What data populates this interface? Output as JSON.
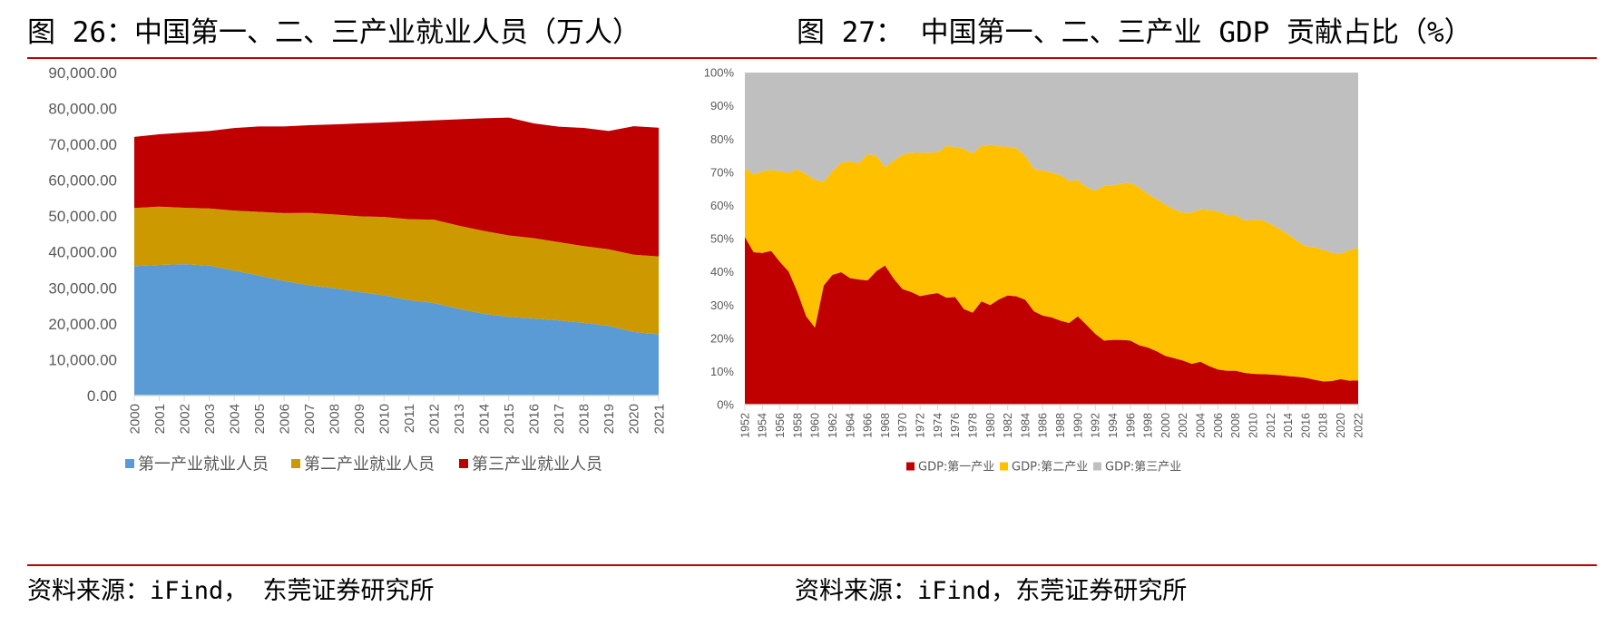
{
  "figures": {
    "left_title": "图 26：中国第一、二、三产业就业人员（万人）",
    "right_title": "图 27： 中国第一、二、三产业 GDP 贡献占比（%）",
    "left_source": "资料来源：iFind， 东莞证券研究所",
    "right_source": "资料来源：iFind，东莞证券研究所"
  },
  "chart_data": [
    {
      "type": "area",
      "stacked": true,
      "title": "图 26：中国第一、二、三产业就业人员（万人）",
      "xlabel": "",
      "ylabel": "",
      "ylim": [
        0,
        90000
      ],
      "y_ticks": [
        "0.00",
        "10,000.00",
        "20,000.00",
        "30,000.00",
        "40,000.00",
        "50,000.00",
        "60,000.00",
        "70,000.00",
        "80,000.00",
        "90,000.00"
      ],
      "grid": false,
      "legend": "bottom",
      "x": [
        "2000",
        "2001",
        "2002",
        "2003",
        "2004",
        "2005",
        "2006",
        "2007",
        "2008",
        "2009",
        "2010",
        "2011",
        "2012",
        "2013",
        "2014",
        "2015",
        "2016",
        "2017",
        "2018",
        "2019",
        "2020",
        "2021"
      ],
      "series": [
        {
          "name": "第一产业就业人员",
          "color": "#5b9bd5",
          "values": [
            36043,
            36399,
            36640,
            36204,
            34830,
            33442,
            31941,
            30731,
            29923,
            28890,
            27931,
            26594,
            25773,
            24171,
            22790,
            21919,
            21496,
            20944,
            20258,
            19445,
            17715,
            17072
          ]
        },
        {
          "name": "第二产业就业人员",
          "color": "#cc9900",
          "values": [
            16219,
            16234,
            15682,
            15927,
            16709,
            17766,
            18894,
            20186,
            20553,
            21080,
            21842,
            22544,
            23241,
            23170,
            23099,
            22693,
            22350,
            21824,
            21390,
            21305,
            21543,
            21712
          ]
        },
        {
          "name": "第三产业就业人员",
          "color": "#c00000",
          "values": [
            19823,
            20165,
            20958,
            21605,
            23011,
            23771,
            24143,
            24404,
            25087,
            25857,
            26332,
            27282,
            27690,
            29636,
            31364,
            32839,
            31991,
            32154,
            32939,
            32974,
            35806,
            35868
          ]
        }
      ]
    },
    {
      "type": "area",
      "stacked": true,
      "percent": true,
      "title": "图 27： 中国第一、二、三产业 GDP 贡献占比（%）",
      "xlabel": "",
      "ylabel": "",
      "ylim": [
        0,
        100
      ],
      "y_ticks": [
        "0%",
        "10%",
        "20%",
        "30%",
        "40%",
        "50%",
        "60%",
        "70%",
        "80%",
        "90%",
        "100%"
      ],
      "grid": false,
      "legend": "bottom",
      "x_tick_labels": [
        "1952",
        "1954",
        "1956",
        "1958",
        "1960",
        "1962",
        "1964",
        "1966",
        "1968",
        "1970",
        "1972",
        "1974",
        "1976",
        "1978",
        "1980",
        "1982",
        "1984",
        "1986",
        "1988",
        "1990",
        "1992",
        "1994",
        "1996",
        "1998",
        "2000",
        "2002",
        "2004",
        "2006",
        "2008",
        "2010",
        "2012",
        "2014",
        "2016",
        "2018",
        "2020",
        "2022"
      ],
      "x_start": 1952,
      "x_end": 2022,
      "series": [
        {
          "name": "GDP:第一产业",
          "color": "#c00000",
          "values": [
            50.5,
            45.9,
            45.7,
            46.3,
            43.0,
            40.1,
            33.9,
            26.6,
            23.2,
            35.9,
            39.1,
            39.9,
            38.1,
            37.7,
            37.4,
            40.2,
            41.9,
            37.9,
            34.8,
            33.9,
            32.7,
            33.2,
            33.6,
            32.2,
            32.4,
            28.8,
            27.7,
            31.1,
            30.0,
            31.7,
            32.9,
            32.6,
            31.6,
            28.1,
            26.8,
            26.3,
            25.3,
            24.6,
            26.6,
            24.0,
            21.3,
            19.3,
            19.5,
            19.5,
            19.3,
            17.9,
            17.2,
            16.1,
            14.7,
            14.0,
            13.3,
            12.3,
            12.9,
            11.6,
            10.6,
            10.2,
            10.2,
            9.6,
            9.3,
            9.2,
            9.1,
            8.9,
            8.6,
            8.4,
            8.1,
            7.5,
            7.0,
            7.1,
            7.7,
            7.2,
            7.3
          ]
        },
        {
          "name": "GDP:第二产业",
          "color": "#ffc000",
          "values": [
            20.8,
            23.4,
            24.6,
            24.4,
            27.3,
            29.7,
            37.0,
            42.8,
            44.5,
            31.2,
            31.3,
            33.0,
            35.2,
            35.0,
            38.0,
            34.7,
            29.7,
            35.6,
            40.5,
            42.0,
            43.1,
            42.7,
            42.4,
            45.7,
            45.2,
            48.2,
            47.9,
            46.9,
            48.2,
            46.1,
            44.8,
            44.6,
            43.3,
            42.9,
            43.7,
            43.6,
            43.8,
            42.8,
            41.0,
            41.5,
            43.1,
            46.6,
            46.6,
            47.1,
            47.5,
            47.5,
            46.2,
            45.8,
            45.5,
            44.8,
            44.5,
            45.6,
            45.9,
            47.0,
            47.6,
            46.9,
            46.9,
            45.9,
            46.4,
            46.4,
            45.3,
            44.0,
            42.7,
            40.9,
            39.6,
            39.9,
            39.7,
            38.6,
            37.8,
            39.3,
            39.9
          ]
        },
        {
          "name": "GDP:第三产业",
          "color": "#bfbfbf",
          "values": [
            28.7,
            30.7,
            29.7,
            29.3,
            29.7,
            30.2,
            29.1,
            30.6,
            32.3,
            32.9,
            29.6,
            27.1,
            26.7,
            27.3,
            24.6,
            25.1,
            28.4,
            26.5,
            24.7,
            24.1,
            24.2,
            24.1,
            24.0,
            22.1,
            22.4,
            23.0,
            24.4,
            22.0,
            21.8,
            22.2,
            22.3,
            22.8,
            25.1,
            29.0,
            29.5,
            30.1,
            30.9,
            32.6,
            32.4,
            34.5,
            35.6,
            34.1,
            33.9,
            33.4,
            33.2,
            34.6,
            36.6,
            38.1,
            39.8,
            41.2,
            42.2,
            42.1,
            41.2,
            41.4,
            41.8,
            42.9,
            42.9,
            44.5,
            44.3,
            44.4,
            45.6,
            47.1,
            48.7,
            50.7,
            52.3,
            52.6,
            53.3,
            54.3,
            54.5,
            53.5,
            52.8
          ]
        }
      ]
    }
  ]
}
